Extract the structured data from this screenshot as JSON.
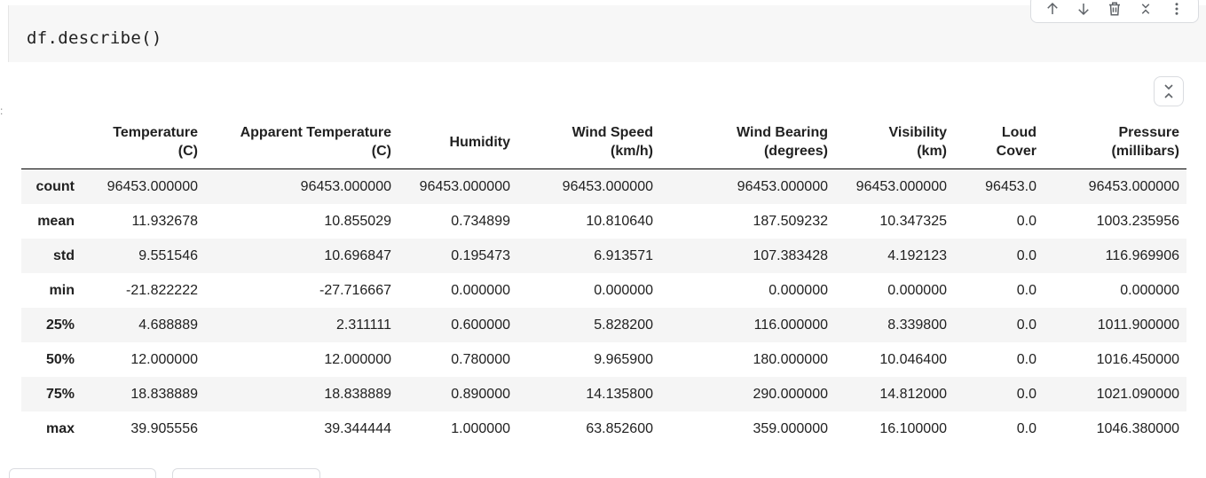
{
  "code_cell": {
    "code": "df.describe()"
  },
  "toolbar": {
    "buttons": [
      {
        "name": "move-up-icon"
      },
      {
        "name": "move-down-icon"
      },
      {
        "name": "delete-icon"
      },
      {
        "name": "collapse-icon"
      },
      {
        "name": "more-icon"
      }
    ]
  },
  "output": {
    "columns": [
      {
        "line1": "Temperature",
        "line2": "(C)"
      },
      {
        "line1": "Apparent Temperature",
        "line2": "(C)"
      },
      {
        "line1": "Humidity",
        "line2": ""
      },
      {
        "line1": "Wind Speed",
        "line2": "(km/h)"
      },
      {
        "line1": "Wind Bearing",
        "line2": "(degrees)"
      },
      {
        "line1": "Visibility",
        "line2": "(km)"
      },
      {
        "line1": "Loud",
        "line2": "Cover"
      },
      {
        "line1": "Pressure",
        "line2": "(millibars)"
      }
    ],
    "rows": [
      {
        "label": "count",
        "values": [
          "96453.000000",
          "96453.000000",
          "96453.000000",
          "96453.000000",
          "96453.000000",
          "96453.000000",
          "96453.0",
          "96453.000000"
        ]
      },
      {
        "label": "mean",
        "values": [
          "11.932678",
          "10.855029",
          "0.734899",
          "10.810640",
          "187.509232",
          "10.347325",
          "0.0",
          "1003.235956"
        ]
      },
      {
        "label": "std",
        "values": [
          "9.551546",
          "10.696847",
          "0.195473",
          "6.913571",
          "107.383428",
          "4.192123",
          "0.0",
          "116.969906"
        ]
      },
      {
        "label": "min",
        "values": [
          "-21.822222",
          "-27.716667",
          "0.000000",
          "0.000000",
          "0.000000",
          "0.000000",
          "0.0",
          "0.000000"
        ]
      },
      {
        "label": "25%",
        "values": [
          "4.688889",
          "2.311111",
          "0.600000",
          "5.828200",
          "116.000000",
          "8.339800",
          "0.0",
          "1011.900000"
        ]
      },
      {
        "label": "50%",
        "values": [
          "12.000000",
          "12.000000",
          "0.780000",
          "9.965900",
          "180.000000",
          "10.046400",
          "0.0",
          "1016.450000"
        ]
      },
      {
        "label": "75%",
        "values": [
          "18.838889",
          "18.838889",
          "0.890000",
          "14.135800",
          "290.000000",
          "14.812000",
          "0.0",
          "1021.090000"
        ]
      },
      {
        "label": "max",
        "values": [
          "39.905556",
          "39.344444",
          "1.000000",
          "63.852600",
          "359.000000",
          "16.100000",
          "0.0",
          "1046.380000"
        ]
      }
    ]
  }
}
